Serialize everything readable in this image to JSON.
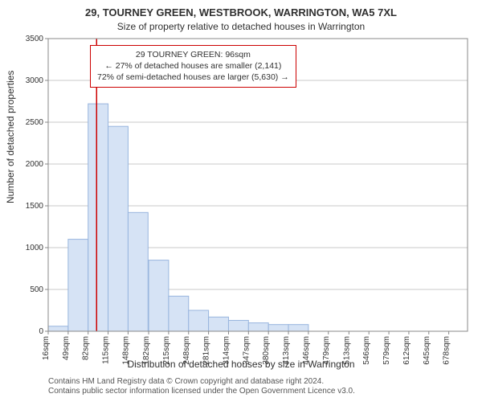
{
  "title": "29, TOURNEY GREEN, WESTBROOK, WARRINGTON, WA5 7XL",
  "subtitle": "Size of property relative to detached houses in Warrington",
  "y_axis_label": "Number of detached properties",
  "x_axis_label": "Distribution of detached houses by size in Warrington",
  "footer_line1": "Contains HM Land Registry data © Crown copyright and database right 2024.",
  "footer_line2": "Contains public sector information licensed under the Open Government Licence v3.0.",
  "callout": {
    "line1": "29 TOURNEY GREEN: 96sqm",
    "line2": "← 27% of detached houses are smaller (2,141)",
    "line3": "72% of semi-detached houses are larger (5,630) →",
    "border_color": "#cc0000",
    "text_color": "#303030"
  },
  "chart": {
    "type": "bar-histogram",
    "background_color": "#ffffff",
    "plot_border_color": "#888888",
    "grid_color": "#c8c8c8",
    "bar_fill": "#d6e3f5",
    "bar_stroke": "#98b5de",
    "marker_line_color": "#cc0000",
    "marker_value": 96,
    "ylim": [
      0,
      3500
    ],
    "ytick_step": 500,
    "yticks": [
      0,
      500,
      1000,
      1500,
      2000,
      2500,
      3000,
      3500
    ],
    "x_start": 16,
    "x_step": 33,
    "x_count": 21,
    "x_ticks": [
      16,
      49,
      82,
      115,
      148,
      182,
      215,
      248,
      281,
      314,
      347,
      380,
      413,
      446,
      479,
      513,
      546,
      579,
      612,
      645,
      678
    ],
    "x_tick_labels": [
      "16sqm",
      "49sqm",
      "82sqm",
      "115sqm",
      "148sqm",
      "182sqm",
      "215sqm",
      "248sqm",
      "281sqm",
      "314sqm",
      "347sqm",
      "380sqm",
      "413sqm",
      "446sqm",
      "479sqm",
      "513sqm",
      "546sqm",
      "579sqm",
      "612sqm",
      "645sqm",
      "678sqm"
    ],
    "bars_x": [
      16,
      49,
      82,
      115,
      148,
      182,
      215,
      248,
      281,
      314,
      347,
      380,
      413
    ],
    "bars_h": [
      60,
      1100,
      2720,
      2450,
      1420,
      850,
      420,
      250,
      170,
      130,
      100,
      80,
      80
    ],
    "tick_fontsize": 10,
    "label_fontsize": 12,
    "title_fontsize": 13
  }
}
